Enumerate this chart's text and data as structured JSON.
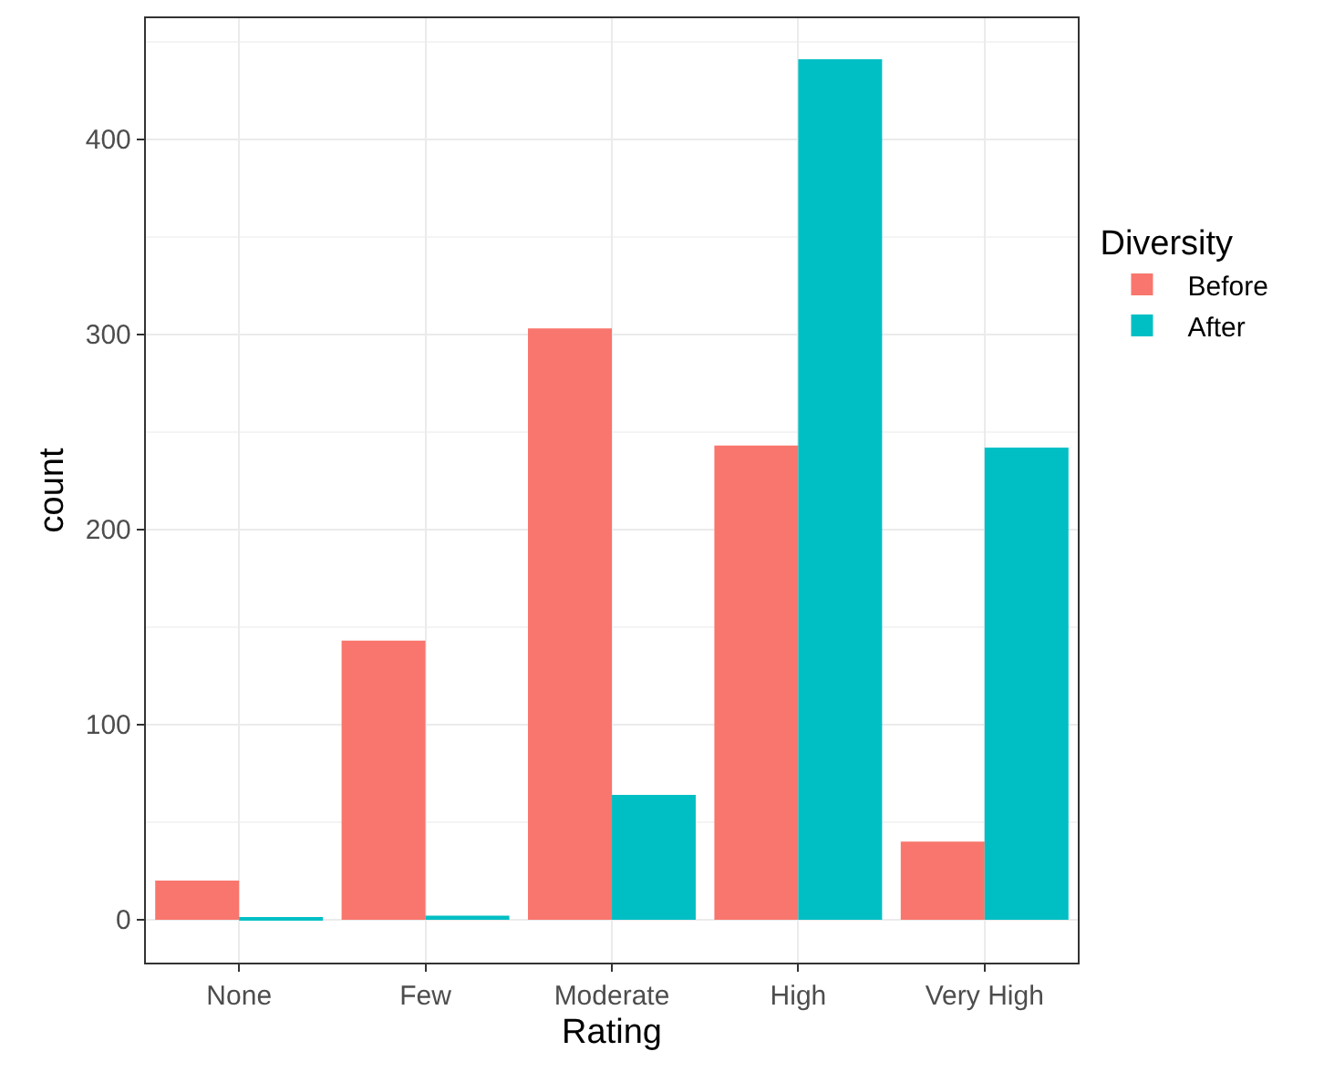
{
  "chart_data": {
    "type": "bar",
    "xlabel": "Rating",
    "ylabel": "count",
    "legend_title": "Diversity",
    "categories": [
      "None",
      "Few",
      "Moderate",
      "High",
      "Very High"
    ],
    "series": [
      {
        "name": "Before",
        "color": "#f8766d",
        "values": [
          20,
          143,
          303,
          243,
          40
        ]
      },
      {
        "name": "After",
        "color": "#00bfc4",
        "values": [
          1,
          2,
          64,
          441,
          242
        ]
      }
    ],
    "ylim": [
      -22,
      462
    ],
    "yticks": [
      0,
      100,
      200,
      300,
      400
    ],
    "grid": true,
    "legend": "right"
  }
}
